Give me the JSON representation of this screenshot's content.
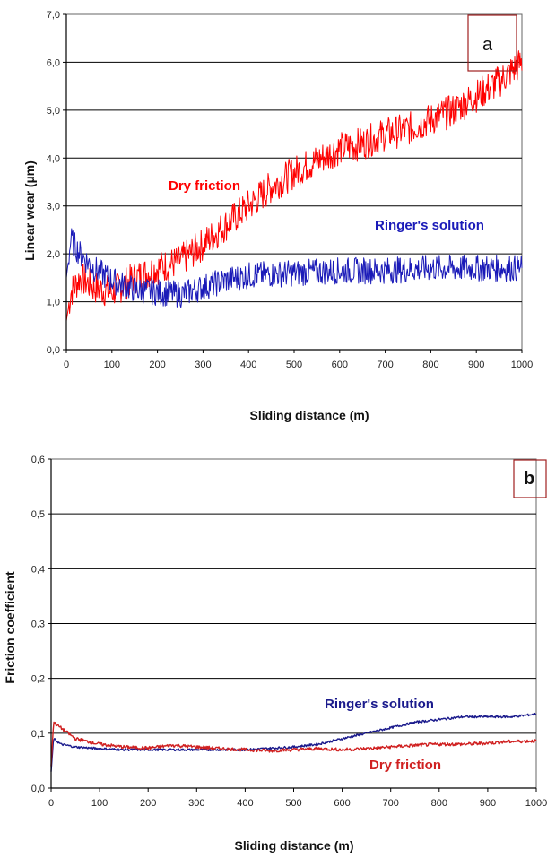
{
  "chart_data": [
    {
      "type": "line",
      "panel_label": "a",
      "xlabel": "Sliding distance (m)",
      "ylabel": "Linear wear (µm)",
      "xlim": [
        0,
        1000
      ],
      "ylim": [
        0,
        7
      ],
      "x_ticks": [
        "0",
        "100",
        "200",
        "300",
        "400",
        "500",
        "600",
        "700",
        "800",
        "900",
        "1000"
      ],
      "y_ticks": [
        "0,0",
        "1,0",
        "2,0",
        "3,0",
        "4,0",
        "5,0",
        "6,0",
        "7,0"
      ],
      "grid": "horizontal",
      "series": [
        {
          "name": "Dry friction",
          "color": "#ff0000",
          "noise": 0.35,
          "x": [
            0,
            10,
            30,
            60,
            100,
            150,
            200,
            250,
            300,
            350,
            400,
            450,
            500,
            550,
            600,
            650,
            700,
            750,
            800,
            850,
            900,
            950,
            1000
          ],
          "y": [
            0.6,
            1.2,
            1.5,
            1.3,
            1.2,
            1.5,
            1.7,
            1.85,
            2.2,
            2.6,
            3.0,
            3.4,
            3.7,
            3.95,
            4.2,
            4.3,
            4.5,
            4.6,
            4.8,
            5.0,
            5.3,
            5.6,
            6.0
          ]
        },
        {
          "name": "Ringer's solution",
          "color": "#1a1ab8",
          "noise": 0.28,
          "x": [
            0,
            10,
            30,
            60,
            100,
            150,
            200,
            250,
            300,
            350,
            400,
            500,
            600,
            700,
            800,
            900,
            1000
          ],
          "y": [
            1.5,
            2.3,
            2.0,
            1.7,
            1.45,
            1.25,
            1.2,
            1.15,
            1.3,
            1.45,
            1.55,
            1.6,
            1.65,
            1.65,
            1.7,
            1.7,
            1.7
          ]
        }
      ]
    },
    {
      "type": "line",
      "panel_label": "b",
      "xlabel": "Sliding distance (m)",
      "ylabel": "Friction coefficient",
      "xlim": [
        0,
        1000
      ],
      "ylim": [
        0,
        0.6
      ],
      "x_ticks": [
        "0",
        "100",
        "200",
        "300",
        "400",
        "500",
        "600",
        "700",
        "800",
        "900",
        "1000"
      ],
      "y_ticks": [
        "0,0",
        "0,1",
        "0,2",
        "0,3",
        "0,4",
        "0,5",
        "0,6"
      ],
      "grid": "horizontal",
      "series": [
        {
          "name": "Ringer's solution",
          "color": "#1a1a8c",
          "noise": 0.002,
          "x": [
            0,
            5,
            20,
            50,
            100,
            150,
            200,
            300,
            400,
            500,
            550,
            600,
            650,
            700,
            750,
            800,
            850,
            900,
            950,
            1000
          ],
          "y": [
            0.03,
            0.09,
            0.08,
            0.075,
            0.072,
            0.07,
            0.07,
            0.07,
            0.07,
            0.075,
            0.08,
            0.09,
            0.1,
            0.11,
            0.12,
            0.125,
            0.13,
            0.13,
            0.13,
            0.135
          ]
        },
        {
          "name": "Dry friction",
          "color": "#d02020",
          "noise": 0.003,
          "x": [
            0,
            5,
            20,
            50,
            100,
            150,
            200,
            250,
            300,
            350,
            400,
            450,
            500,
            550,
            600,
            650,
            700,
            750,
            800,
            850,
            900,
            950,
            1000
          ],
          "y": [
            0.04,
            0.12,
            0.11,
            0.09,
            0.08,
            0.075,
            0.073,
            0.078,
            0.075,
            0.072,
            0.07,
            0.068,
            0.07,
            0.072,
            0.07,
            0.072,
            0.075,
            0.078,
            0.08,
            0.08,
            0.082,
            0.085,
            0.086
          ]
        }
      ]
    }
  ]
}
